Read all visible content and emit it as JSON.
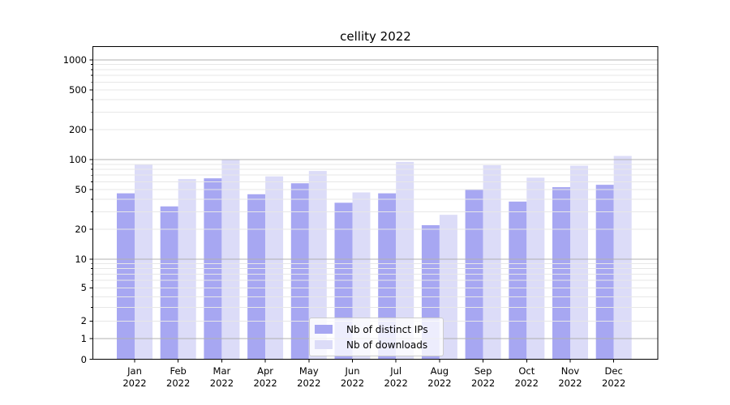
{
  "title": "cellity 2022",
  "chart_data": {
    "type": "bar",
    "title": "cellity 2022",
    "categories": [
      "Jan 2022",
      "Feb 2022",
      "Mar 2022",
      "Apr 2022",
      "May 2022",
      "Jun 2022",
      "Jul 2022",
      "Aug 2022",
      "Sep 2022",
      "Oct 2022",
      "Nov 2022",
      "Dec 2022"
    ],
    "months": [
      "Jan",
      "Feb",
      "Mar",
      "Apr",
      "May",
      "Jun",
      "Jul",
      "Aug",
      "Sep",
      "Oct",
      "Nov",
      "Dec"
    ],
    "year_line": "2022",
    "series": [
      {
        "name": "Nb of distinct IPs",
        "color": "#a7a7f2",
        "values": [
          46,
          34,
          65,
          45,
          58,
          37,
          46,
          22,
          50,
          38,
          53,
          56
        ]
      },
      {
        "name": "Nb of downloads",
        "color": "#dcdcf8",
        "values": [
          89,
          64,
          101,
          68,
          77,
          47,
          95,
          28,
          88,
          66,
          87,
          109
        ]
      }
    ],
    "yscale": "symlog",
    "yticks": [
      0,
      1,
      2,
      5,
      10,
      20,
      50,
      100,
      200,
      500,
      1000
    ],
    "ylim": [
      0,
      1350
    ],
    "xlabel": "",
    "ylabel": "",
    "grid": true,
    "legend_position": "lower center",
    "colors": {
      "grid_major": "#b0b0b0",
      "grid_minor": "#e7e7e7",
      "axis": "#000000",
      "background": "#ffffff"
    }
  }
}
